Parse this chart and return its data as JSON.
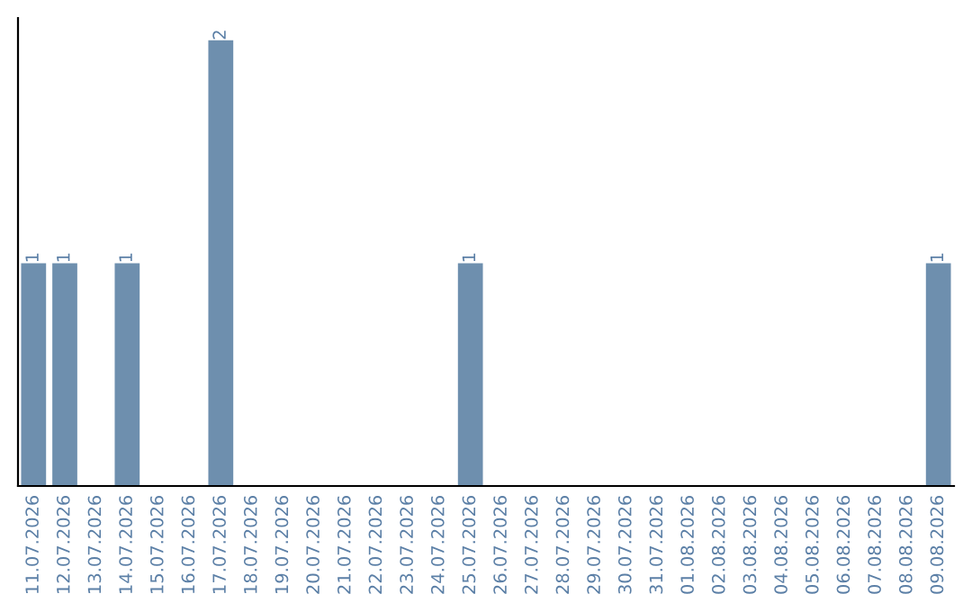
{
  "chart_data": {
    "type": "bar",
    "categories": [
      "11.07.2026",
      "12.07.2026",
      "13.07.2026",
      "14.07.2026",
      "15.07.2026",
      "16.07.2026",
      "17.07.2026",
      "18.07.2026",
      "19.07.2026",
      "20.07.2026",
      "21.07.2026",
      "22.07.2026",
      "23.07.2026",
      "24.07.2026",
      "25.07.2026",
      "26.07.2026",
      "27.07.2026",
      "28.07.2026",
      "29.07.2026",
      "30.07.2026",
      "31.07.2026",
      "01.08.2026",
      "02.08.2026",
      "03.08.2026",
      "04.08.2026",
      "05.08.2026",
      "06.08.2026",
      "07.08.2026",
      "08.08.2026",
      "09.08.2026"
    ],
    "values": [
      1,
      1,
      0,
      1,
      0,
      0,
      2,
      0,
      0,
      0,
      0,
      0,
      0,
      0,
      1,
      0,
      0,
      0,
      0,
      0,
      0,
      0,
      0,
      0,
      0,
      0,
      0,
      0,
      0,
      1
    ],
    "value_labels": [
      "1",
      "1",
      null,
      "1",
      null,
      null,
      "2",
      null,
      null,
      null,
      null,
      null,
      null,
      null,
      "1",
      null,
      null,
      null,
      null,
      null,
      null,
      null,
      null,
      null,
      null,
      null,
      null,
      null,
      null,
      "1"
    ],
    "color": "#6e8fae",
    "tick_labels": "x",
    "grid": false,
    "legend": false
  }
}
